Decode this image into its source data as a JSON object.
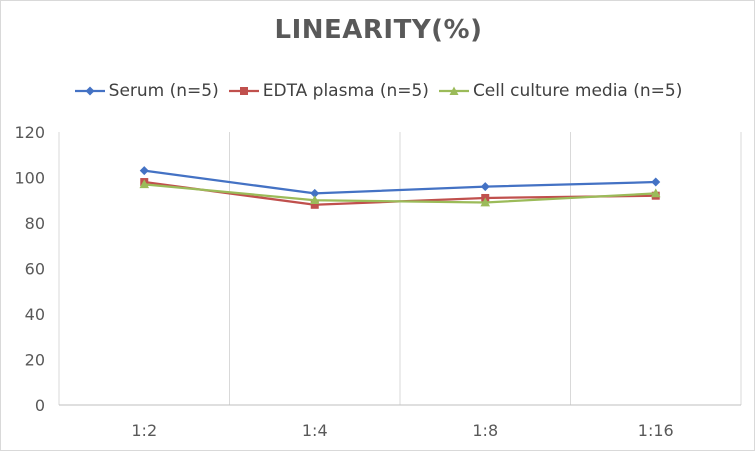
{
  "chart_data": {
    "type": "line",
    "title": "LINEARITY(%)",
    "categories": [
      "1:2",
      "1:4",
      "1:8",
      "1:16"
    ],
    "ylim": [
      0,
      120
    ],
    "yticks": [
      0,
      20,
      40,
      60,
      80,
      100,
      120
    ],
    "grid": "vertical",
    "legend_position": "top",
    "series": [
      {
        "name": "Serum (n=5)",
        "values": [
          103,
          93,
          96,
          98
        ],
        "color": "#4472c4",
        "marker": "diamond"
      },
      {
        "name": "EDTA plasma (n=5)",
        "values": [
          98,
          88,
          91,
          92
        ],
        "color": "#c0504d",
        "marker": "square"
      },
      {
        "name": "Cell culture media (n=5)",
        "values": [
          97,
          90,
          89,
          93
        ],
        "color": "#9bbb59",
        "marker": "triangle"
      }
    ]
  }
}
